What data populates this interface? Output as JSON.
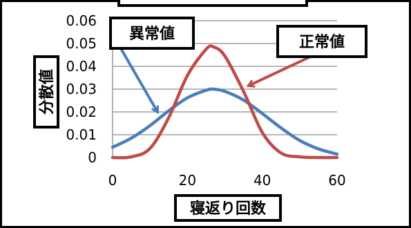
{
  "chart_data": {
    "type": "line",
    "title": "",
    "xlabel": "寝返り回数",
    "ylabel": "分散値",
    "xlim": [
      0,
      60
    ],
    "ylim": [
      0,
      0.06
    ],
    "x_ticks": [
      0,
      20,
      40,
      60
    ],
    "x_tick_labels": [
      "0",
      "20",
      "40",
      "60"
    ],
    "y_ticks": [
      0,
      0.01,
      0.02,
      0.03,
      0.04,
      0.05,
      0.06
    ],
    "y_tick_labels": [
      "0",
      "0.01",
      "0.02",
      "0.03",
      "0.04",
      "0.05",
      "0.06"
    ],
    "grid": true,
    "series": [
      {
        "name": "異常値",
        "color": "#4a7ebb",
        "x": [
          0,
          5,
          10,
          15,
          20,
          25,
          27,
          30,
          35,
          40,
          45,
          50,
          55,
          60
        ],
        "y": [
          0.0045,
          0.0085,
          0.014,
          0.0205,
          0.0262,
          0.0295,
          0.03,
          0.029,
          0.0252,
          0.0193,
          0.013,
          0.0075,
          0.0038,
          0.0015
        ]
      },
      {
        "name": "正常値",
        "color": "#be4b48",
        "x": [
          0,
          5,
          10,
          15,
          20,
          25,
          27,
          30,
          35,
          40,
          45,
          50,
          55,
          60
        ],
        "y": [
          0.0,
          0.0003,
          0.004,
          0.0175,
          0.036,
          0.0475,
          0.0485,
          0.0445,
          0.029,
          0.011,
          0.002,
          0.0003,
          0.0,
          0.0
        ]
      }
    ],
    "annotations": [
      {
        "text": "異常値",
        "points_to": "異常値"
      },
      {
        "text": "正常値",
        "points_to": "正常値"
      }
    ]
  }
}
